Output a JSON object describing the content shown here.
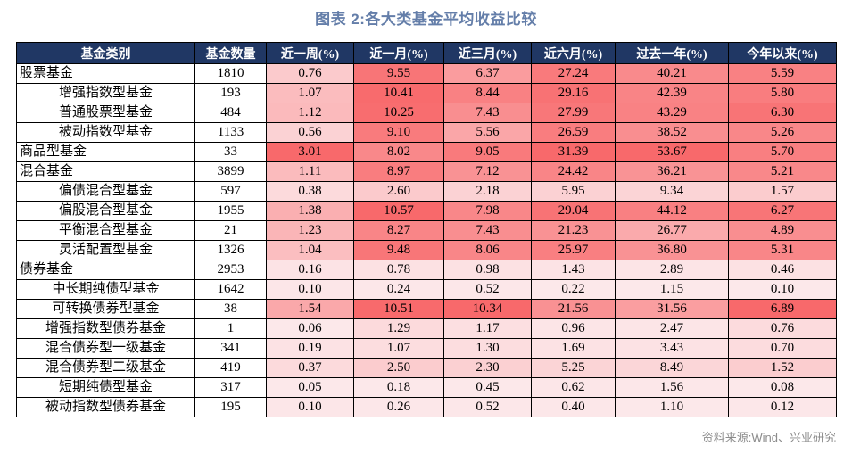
{
  "title": "图表 2:各大类基金平均收益比较",
  "source": "资料来源:Wind、兴业研究",
  "colors": {
    "header_bg": "#203764",
    "header_text": "#FFFFFF",
    "border": "#000000",
    "title_color": "#647EA9",
    "source_color": "#8C8C8C",
    "heat_min": "#FCE8EA",
    "heat_max": "#F8696B"
  },
  "chart_data": {
    "type": "table",
    "title": "图表 2:各大类基金平均收益比较",
    "columns": [
      "基金类别",
      "基金数量",
      "近一周(%)",
      "近一月(%)",
      "近三月(%)",
      "近六月(%)",
      "过去一年(%)",
      "今年以来(%)"
    ],
    "value_columns": [
      "近一周(%)",
      "近一月(%)",
      "近三月(%)",
      "近六月(%)",
      "过去一年(%)",
      "今年以来(%)"
    ],
    "heatmap": "per-column linear color scale from heat_min (column minimum) to heat_max (column maximum) applied to the six return columns",
    "rows": [
      {
        "category": "股票基金",
        "indent": 0,
        "count": "1810",
        "values": [
          "0.76",
          "9.55",
          "6.37",
          "27.24",
          "40.21",
          "5.59"
        ]
      },
      {
        "category": "增强指数型基金",
        "indent": 1,
        "count": "193",
        "values": [
          "1.07",
          "10.41",
          "8.44",
          "29.16",
          "42.39",
          "5.80"
        ]
      },
      {
        "category": "普通股票型基金",
        "indent": 1,
        "count": "484",
        "values": [
          "1.12",
          "10.25",
          "7.43",
          "27.99",
          "43.29",
          "6.30"
        ]
      },
      {
        "category": "被动指数型基金",
        "indent": 1,
        "count": "1133",
        "values": [
          "0.56",
          "9.10",
          "5.56",
          "26.59",
          "38.52",
          "5.26"
        ]
      },
      {
        "category": "商品型基金",
        "indent": 0,
        "count": "33",
        "values": [
          "3.01",
          "8.02",
          "9.05",
          "31.39",
          "53.67",
          "5.70"
        ]
      },
      {
        "category": "混合基金",
        "indent": 0,
        "count": "3899",
        "values": [
          "1.11",
          "8.97",
          "7.12",
          "24.42",
          "36.21",
          "5.21"
        ]
      },
      {
        "category": "偏债混合型基金",
        "indent": 1,
        "count": "597",
        "values": [
          "0.38",
          "2.60",
          "2.18",
          "5.95",
          "9.34",
          "1.57"
        ]
      },
      {
        "category": "偏股混合型基金",
        "indent": 1,
        "count": "1955",
        "values": [
          "1.38",
          "10.57",
          "7.98",
          "29.04",
          "44.12",
          "6.27"
        ]
      },
      {
        "category": "平衡混合型基金",
        "indent": 1,
        "count": "21",
        "values": [
          "1.23",
          "8.27",
          "7.43",
          "21.23",
          "26.77",
          "4.89"
        ]
      },
      {
        "category": "灵活配置型基金",
        "indent": 1,
        "count": "1326",
        "values": [
          "1.04",
          "9.48",
          "8.06",
          "25.97",
          "36.80",
          "5.31"
        ]
      },
      {
        "category": "债券基金",
        "indent": 0,
        "count": "2953",
        "values": [
          "0.16",
          "0.78",
          "0.98",
          "1.43",
          "2.89",
          "0.46"
        ]
      },
      {
        "category": "中长期纯债型基金",
        "indent": 1,
        "count": "1642",
        "values": [
          "0.10",
          "0.24",
          "0.52",
          "0.22",
          "1.15",
          "0.10"
        ]
      },
      {
        "category": "可转换债券型基金",
        "indent": 1,
        "count": "38",
        "values": [
          "1.54",
          "10.51",
          "10.34",
          "21.56",
          "31.56",
          "6.89"
        ]
      },
      {
        "category": "增强指数型债券基金",
        "indent": 1,
        "count": "1",
        "values": [
          "0.06",
          "1.29",
          "1.17",
          "0.96",
          "2.47",
          "0.76"
        ]
      },
      {
        "category": "混合债券型一级基金",
        "indent": 1,
        "count": "341",
        "values": [
          "0.19",
          "1.07",
          "1.30",
          "1.69",
          "3.43",
          "0.70"
        ]
      },
      {
        "category": "混合债券型二级基金",
        "indent": 1,
        "count": "419",
        "values": [
          "0.37",
          "2.50",
          "2.30",
          "5.25",
          "8.49",
          "1.52"
        ]
      },
      {
        "category": "短期纯债型基金",
        "indent": 1,
        "count": "317",
        "values": [
          "0.05",
          "0.18",
          "0.45",
          "0.62",
          "1.56",
          "0.08"
        ]
      },
      {
        "category": "被动指数型债券基金",
        "indent": 1,
        "count": "195",
        "values": [
          "0.10",
          "0.26",
          "0.52",
          "0.40",
          "1.10",
          "0.12"
        ]
      }
    ],
    "source": "资料来源:Wind、兴业研究"
  }
}
